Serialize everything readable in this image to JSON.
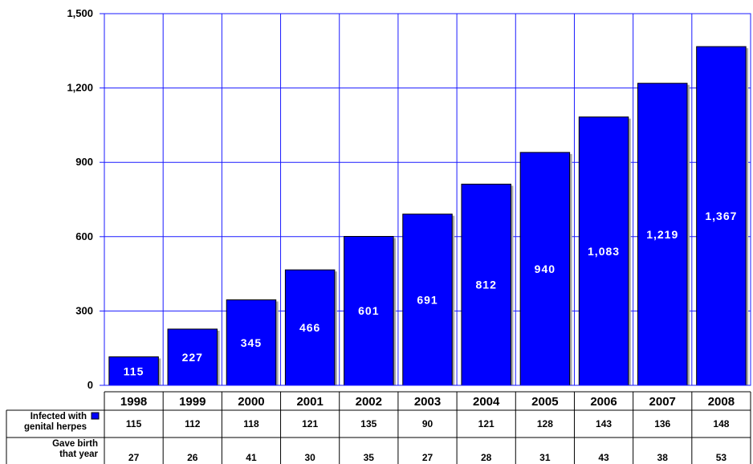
{
  "chart_data": {
    "type": "bar",
    "categories": [
      "1998",
      "1999",
      "2000",
      "2001",
      "2002",
      "2003",
      "2004",
      "2005",
      "2006",
      "2007",
      "2008"
    ],
    "values": [
      115,
      227,
      345,
      466,
      601,
      691,
      812,
      940,
      1083,
      1219,
      1367
    ],
    "data_labels": [
      "115",
      "227",
      "345",
      "466",
      "601",
      "691",
      "812",
      "940",
      "1,083",
      "1,219",
      "1,367"
    ],
    "ylim": [
      0,
      1500
    ],
    "yticks": [
      0,
      300,
      600,
      900,
      1200,
      1500
    ],
    "ytick_labels": [
      "0",
      "300",
      "600",
      "900",
      "1,200",
      "1,500"
    ],
    "grid": true,
    "colors": {
      "bar": "#0000ff",
      "bar_edge": "#000000",
      "grid": "#1a1aff",
      "legend_key": "#0000ff"
    },
    "table": {
      "rows": [
        {
          "label_lines": [
            "Infected with",
            "genital herpes"
          ],
          "legend_key": true,
          "values": [
            "115",
            "112",
            "118",
            "121",
            "135",
            "90",
            "121",
            "128",
            "143",
            "136",
            "148"
          ]
        },
        {
          "label_lines": [
            "Gave birth",
            "that year"
          ],
          "legend_key": false,
          "values": [
            "27",
            "26",
            "41",
            "30",
            "35",
            "27",
            "28",
            "31",
            "43",
            "38",
            "53"
          ]
        }
      ]
    }
  }
}
